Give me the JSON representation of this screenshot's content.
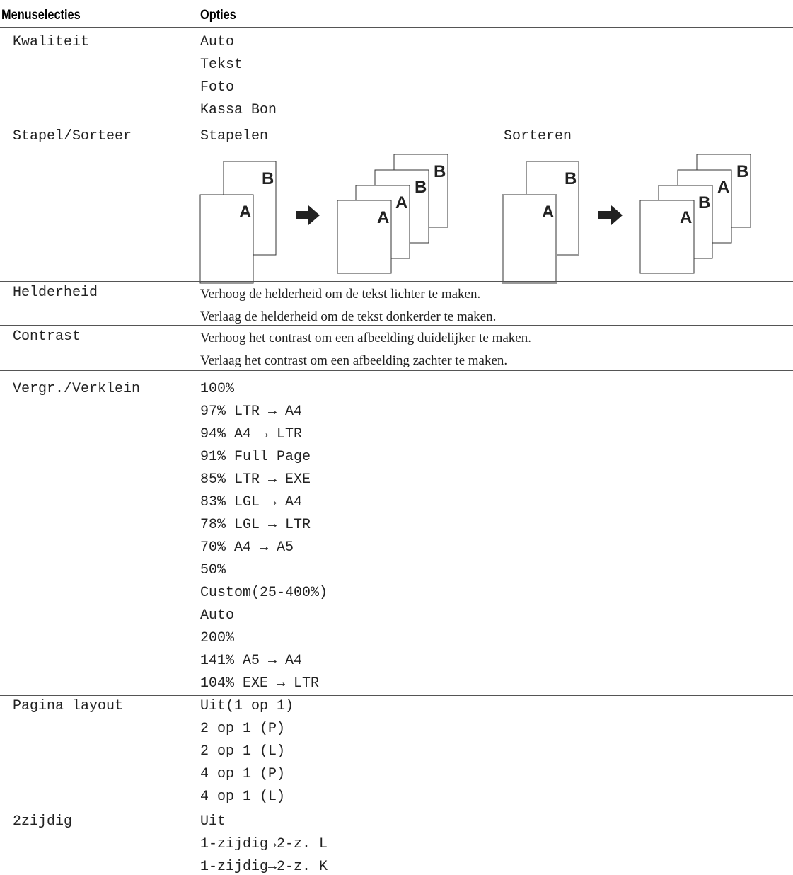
{
  "table": {
    "header": [
      "Menuselecties",
      "Opties"
    ],
    "rows": [
      {
        "label": "Kwaliteit",
        "options": [
          "Auto",
          "Tekst",
          "Foto",
          "Kassa Bon"
        ]
      },
      {
        "label": "Stapel/Sorteer",
        "options": [
          "Stapelen",
          "Sorteren"
        ]
      },
      {
        "label": "Helderheid",
        "options": [
          "Verhoog de helderheid om de tekst lichter te maken.",
          "Verlaag de helderheid om de tekst donkerder te maken."
        ]
      },
      {
        "label": "Contrast",
        "options": [
          "Verhoog het contrast om een afbeelding duidelijker te maken.",
          "Verlaag het contrast om een afbeelding zachter te maken."
        ]
      },
      {
        "label": "Vergr./Verklein",
        "options": [
          "100%",
          "97% LTR → A4",
          "94% A4 → LTR",
          "91% Full Page",
          "85% LTR → EXE",
          "83% LGL → A4",
          "78% LGL → LTR",
          "70% A4 → A5",
          "50%",
          "Custom(25-400%)",
          "Auto",
          "200%",
          "141% A5 → A4",
          "104% EXE → LTR"
        ]
      },
      {
        "label": "Pagina layout",
        "options": [
          "Uit(1 op 1)",
          "2 op 1 (P)",
          "2 op 1 (L)",
          "4 op 1 (P)",
          "4 op 1 (L)"
        ]
      },
      {
        "label": "2zijdig",
        "options": [
          "Uit",
          "1-zijdig→2-z. L",
          "1-zijdig→2-z. K"
        ]
      }
    ]
  },
  "diagram": {
    "front": "A",
    "back": "B"
  }
}
